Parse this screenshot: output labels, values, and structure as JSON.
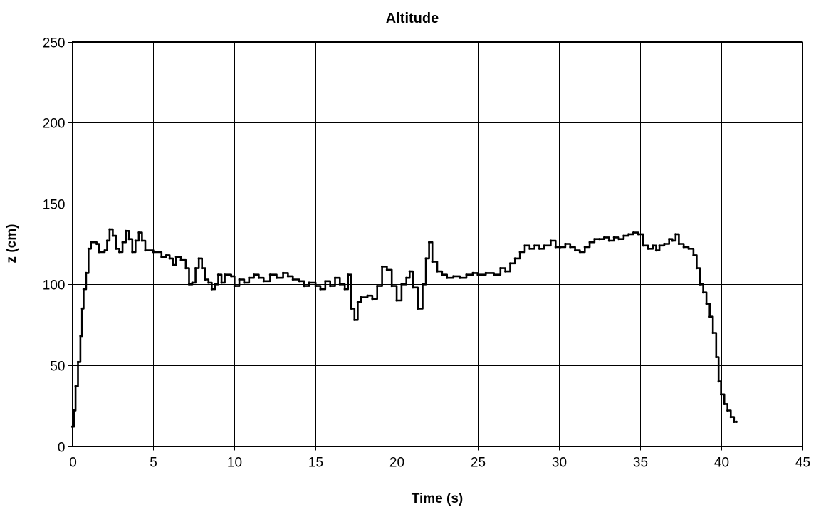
{
  "chart_data": {
    "type": "line",
    "title": "Altitude",
    "xlabel": "Time (s)",
    "ylabel": "z (cm)",
    "xlim": [
      0,
      45
    ],
    "ylim": [
      0,
      250
    ],
    "x_ticks": [
      0,
      5,
      10,
      15,
      20,
      25,
      30,
      35,
      40,
      45
    ],
    "y_ticks": [
      0,
      50,
      100,
      150,
      200,
      250
    ],
    "grid": true,
    "step": true,
    "series_color": "#000000",
    "series": [
      {
        "name": "",
        "points": [
          [
            0.0,
            12
          ],
          [
            0.1,
            22
          ],
          [
            0.2,
            37
          ],
          [
            0.35,
            52
          ],
          [
            0.5,
            68
          ],
          [
            0.6,
            85
          ],
          [
            0.7,
            97
          ],
          [
            0.85,
            107
          ],
          [
            1.0,
            122
          ],
          [
            1.15,
            126
          ],
          [
            1.5,
            125
          ],
          [
            1.65,
            120
          ],
          [
            2.0,
            121
          ],
          [
            2.15,
            127
          ],
          [
            2.3,
            134
          ],
          [
            2.5,
            130
          ],
          [
            2.7,
            122
          ],
          [
            2.9,
            120
          ],
          [
            3.1,
            126
          ],
          [
            3.3,
            133
          ],
          [
            3.5,
            128
          ],
          [
            3.7,
            120
          ],
          [
            3.9,
            127
          ],
          [
            4.1,
            132
          ],
          [
            4.3,
            127
          ],
          [
            4.5,
            121
          ],
          [
            5.0,
            120
          ],
          [
            5.5,
            117
          ],
          [
            5.8,
            118
          ],
          [
            6.0,
            116
          ],
          [
            6.2,
            112
          ],
          [
            6.4,
            117
          ],
          [
            6.7,
            115
          ],
          [
            7.0,
            110
          ],
          [
            7.2,
            100
          ],
          [
            7.4,
            101
          ],
          [
            7.6,
            110
          ],
          [
            7.8,
            116
          ],
          [
            8.0,
            110
          ],
          [
            8.2,
            103
          ],
          [
            8.4,
            101
          ],
          [
            8.6,
            97
          ],
          [
            8.8,
            100
          ],
          [
            9.0,
            106
          ],
          [
            9.2,
            101
          ],
          [
            9.4,
            106
          ],
          [
            9.8,
            105
          ],
          [
            10.0,
            99
          ],
          [
            10.3,
            103
          ],
          [
            10.6,
            101
          ],
          [
            10.9,
            104
          ],
          [
            11.2,
            106
          ],
          [
            11.5,
            104
          ],
          [
            11.8,
            102
          ],
          [
            12.2,
            106
          ],
          [
            12.6,
            104
          ],
          [
            13.0,
            107
          ],
          [
            13.3,
            105
          ],
          [
            13.6,
            103
          ],
          [
            14.0,
            102
          ],
          [
            14.3,
            99
          ],
          [
            14.6,
            101
          ],
          [
            15.0,
            99
          ],
          [
            15.3,
            97
          ],
          [
            15.6,
            102
          ],
          [
            15.9,
            99
          ],
          [
            16.2,
            104
          ],
          [
            16.5,
            100
          ],
          [
            16.8,
            97
          ],
          [
            17.0,
            106
          ],
          [
            17.2,
            85
          ],
          [
            17.4,
            78
          ],
          [
            17.6,
            89
          ],
          [
            17.8,
            92
          ],
          [
            18.2,
            93
          ],
          [
            18.5,
            91
          ],
          [
            18.8,
            99
          ],
          [
            19.1,
            111
          ],
          [
            19.4,
            109
          ],
          [
            19.7,
            99
          ],
          [
            20.0,
            90
          ],
          [
            20.3,
            100
          ],
          [
            20.6,
            104
          ],
          [
            20.8,
            108
          ],
          [
            21.0,
            98
          ],
          [
            21.3,
            85
          ],
          [
            21.6,
            100
          ],
          [
            21.8,
            116
          ],
          [
            22.0,
            126
          ],
          [
            22.2,
            114
          ],
          [
            22.5,
            108
          ],
          [
            22.8,
            106
          ],
          [
            23.1,
            104
          ],
          [
            23.5,
            105
          ],
          [
            23.9,
            104
          ],
          [
            24.3,
            106
          ],
          [
            24.7,
            107
          ],
          [
            25.0,
            106
          ],
          [
            25.5,
            107
          ],
          [
            26.0,
            106
          ],
          [
            26.4,
            110
          ],
          [
            26.7,
            108
          ],
          [
            27.0,
            113
          ],
          [
            27.3,
            116
          ],
          [
            27.6,
            120
          ],
          [
            27.9,
            124
          ],
          [
            28.2,
            122
          ],
          [
            28.5,
            124
          ],
          [
            28.8,
            122
          ],
          [
            29.1,
            124
          ],
          [
            29.5,
            127
          ],
          [
            29.8,
            123
          ],
          [
            30.1,
            123
          ],
          [
            30.4,
            125
          ],
          [
            30.7,
            123
          ],
          [
            31.0,
            121
          ],
          [
            31.3,
            120
          ],
          [
            31.6,
            123
          ],
          [
            31.9,
            126
          ],
          [
            32.2,
            128
          ],
          [
            32.5,
            128
          ],
          [
            32.8,
            129
          ],
          [
            33.1,
            127
          ],
          [
            33.4,
            129
          ],
          [
            33.7,
            128
          ],
          [
            34.0,
            130
          ],
          [
            34.3,
            131
          ],
          [
            34.6,
            132
          ],
          [
            34.9,
            131
          ],
          [
            35.2,
            124
          ],
          [
            35.5,
            122
          ],
          [
            35.8,
            124
          ],
          [
            36.0,
            121
          ],
          [
            36.2,
            124
          ],
          [
            36.5,
            125
          ],
          [
            36.8,
            128
          ],
          [
            37.0,
            127
          ],
          [
            37.2,
            131
          ],
          [
            37.4,
            125
          ],
          [
            37.7,
            123
          ],
          [
            38.0,
            122
          ],
          [
            38.3,
            118
          ],
          [
            38.5,
            110
          ],
          [
            38.7,
            100
          ],
          [
            38.9,
            95
          ],
          [
            39.1,
            88
          ],
          [
            39.3,
            80
          ],
          [
            39.5,
            70
          ],
          [
            39.7,
            55
          ],
          [
            39.85,
            40
          ],
          [
            40.0,
            32
          ],
          [
            40.2,
            26
          ],
          [
            40.4,
            22
          ],
          [
            40.6,
            18
          ],
          [
            40.8,
            15
          ],
          [
            40.95,
            15
          ]
        ]
      }
    ]
  }
}
